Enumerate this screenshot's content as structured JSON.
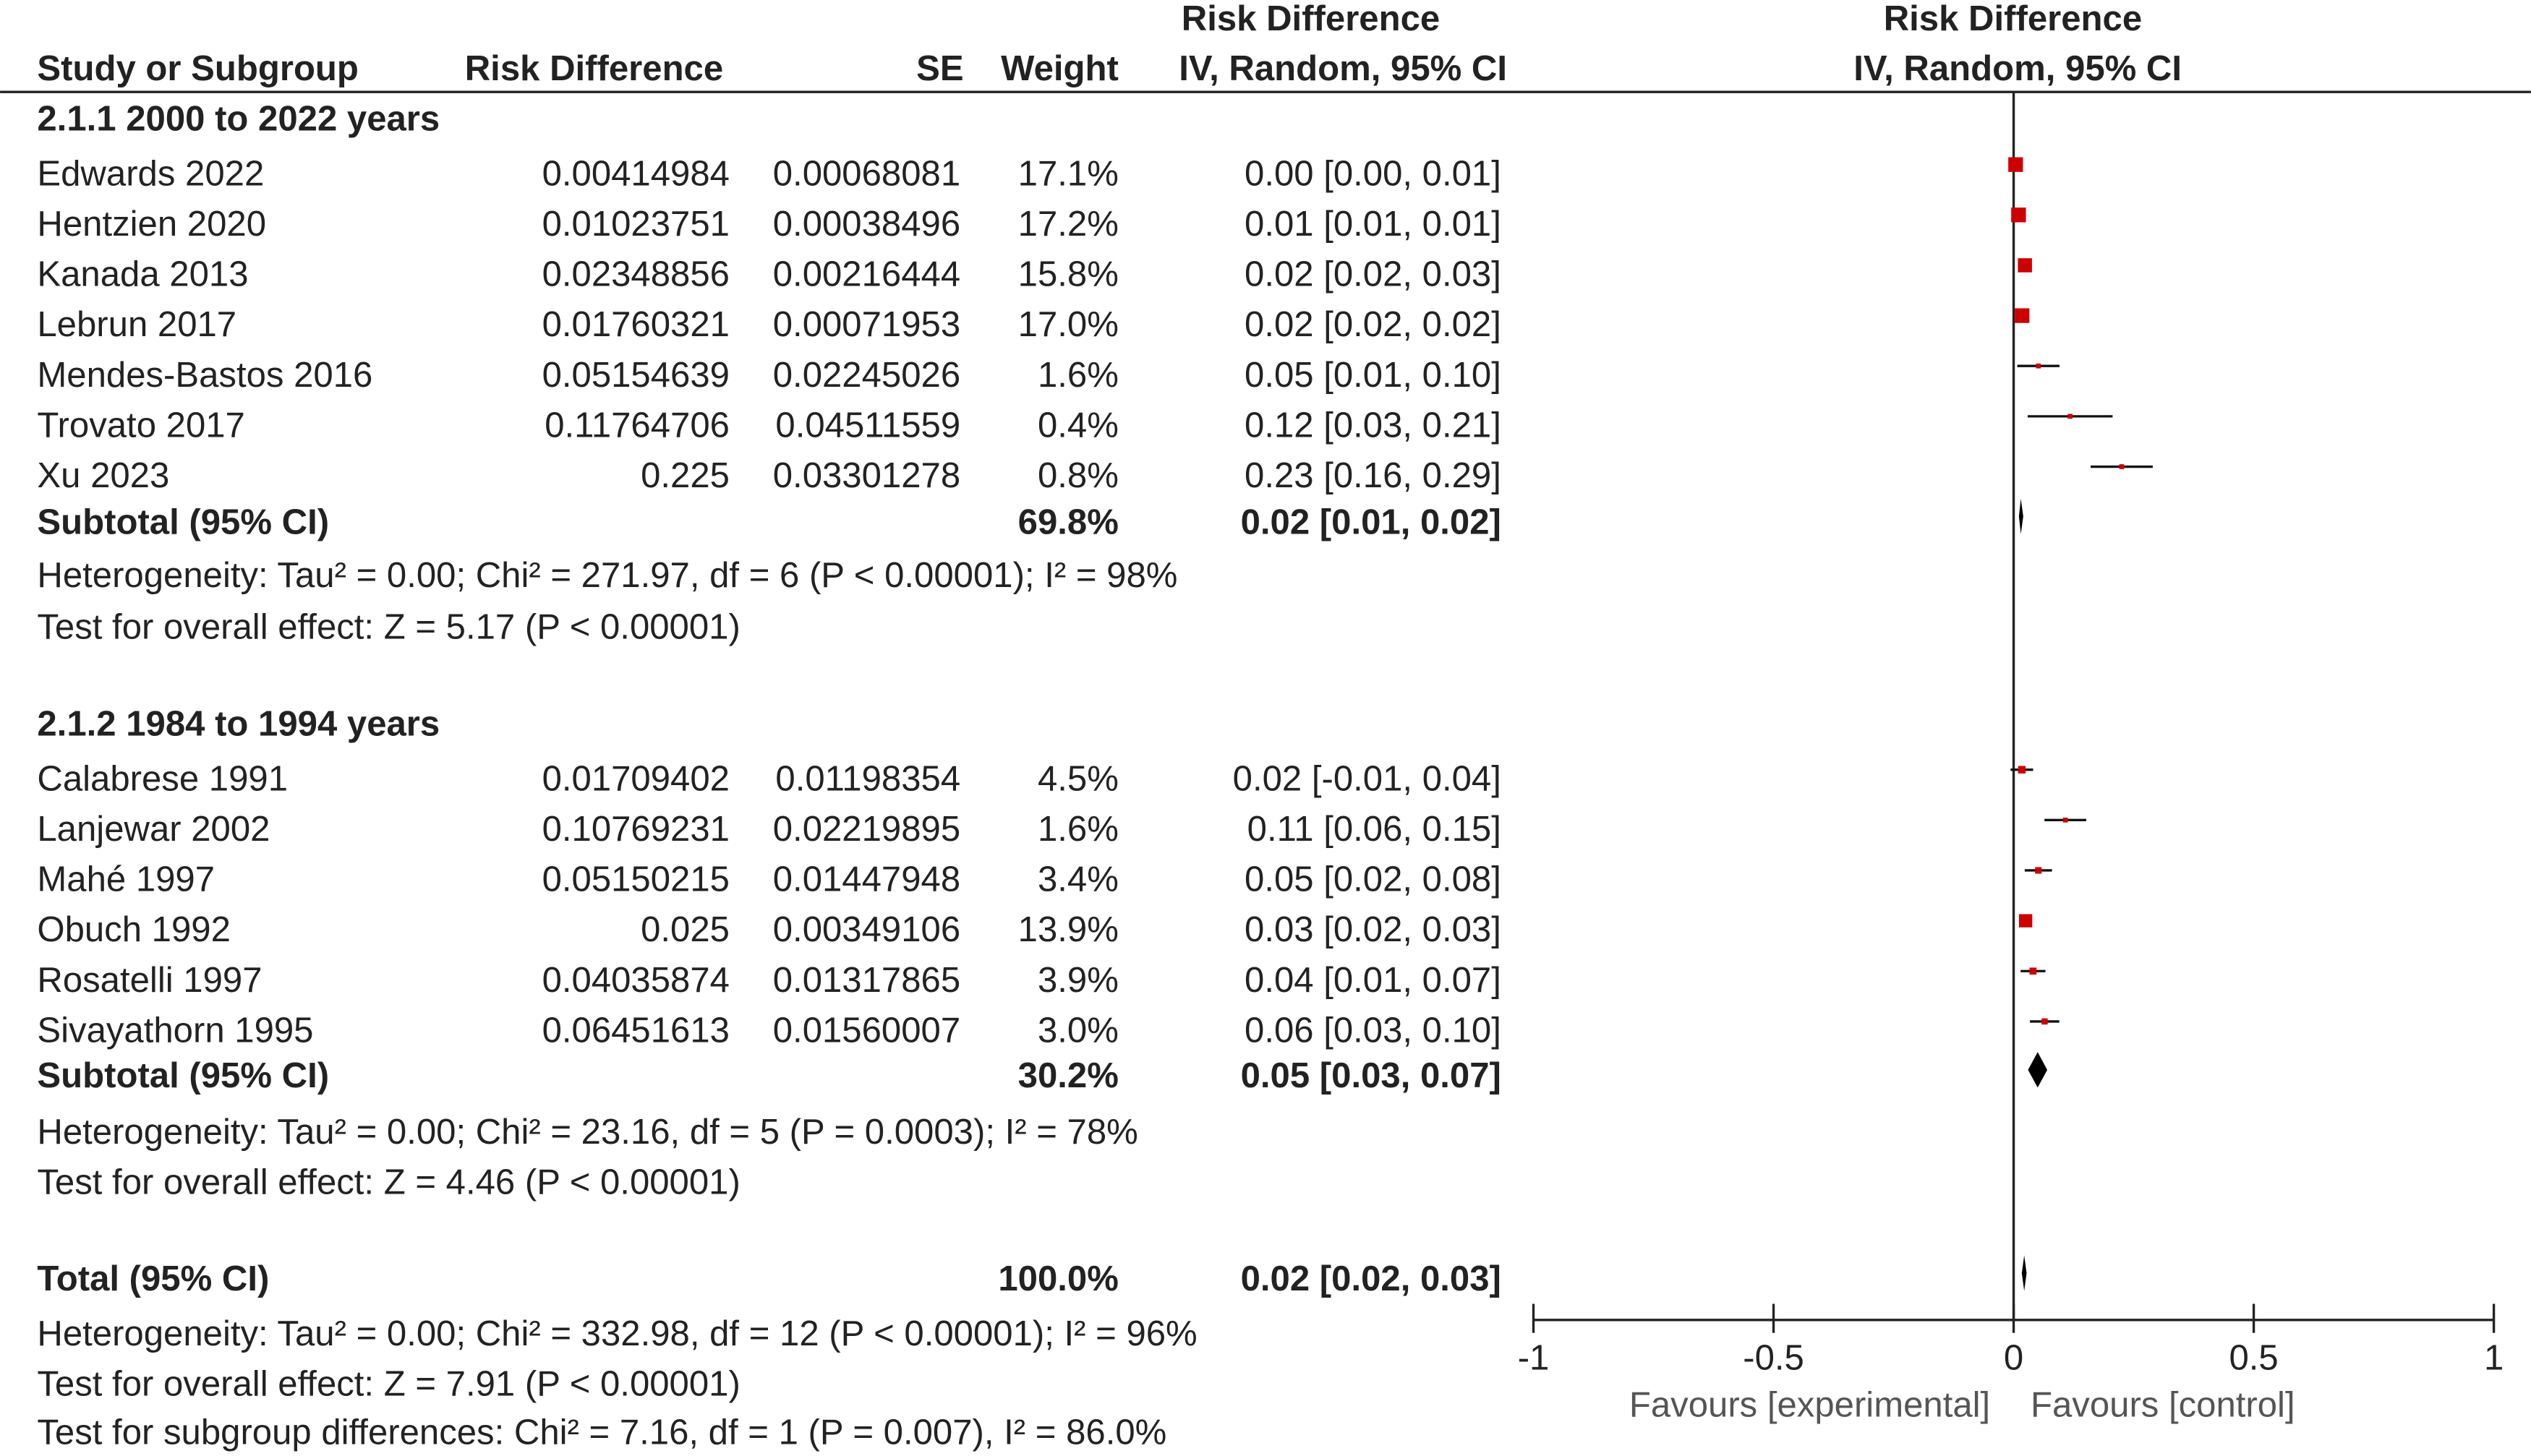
{
  "chart_data": {
    "type": "forest",
    "headers": {
      "top_left": "Risk Difference",
      "top_right": "Risk Difference",
      "study": "Study or Subgroup",
      "rd": "Risk Difference",
      "se": "SE",
      "weight": "Weight",
      "ci": "IV, Random, 95% CI",
      "plot": "IV, Random, 95% CI"
    },
    "groups": [
      {
        "title": "2.1.1 2000 to 2022 years",
        "studies": [
          {
            "name": "Edwards 2022",
            "rd": 0.00414984,
            "se": 0.00068081,
            "weight": {
              "value": 17.1,
              "label": "17.1%"
            },
            "ci_label": "0.00 [0.00, 0.01]",
            "ci": [
              0.0028,
              0.0055
            ]
          },
          {
            "name": "Hentzien 2020",
            "rd": 0.01023751,
            "se": 0.00038496,
            "weight": {
              "value": 17.2,
              "label": "17.2%"
            },
            "ci_label": "0.01 [0.01, 0.01]",
            "ci": [
              0.0095,
              0.011
            ]
          },
          {
            "name": "Kanada 2013",
            "rd": 0.02348856,
            "se": 0.00216444,
            "weight": {
              "value": 15.8,
              "label": "15.8%"
            },
            "ci_label": "0.02 [0.02, 0.03]",
            "ci": [
              0.0192,
              0.0277
            ]
          },
          {
            "name": "Lebrun 2017",
            "rd": 0.01760321,
            "se": 0.00071953,
            "weight": {
              "value": 17.0,
              "label": "17.0%"
            },
            "ci_label": "0.02 [0.02, 0.02]",
            "ci": [
              0.0162,
              0.019
            ]
          },
          {
            "name": "Mendes-Bastos 2016",
            "rd": 0.05154639,
            "se": 0.02245026,
            "weight": {
              "value": 1.6,
              "label": "1.6%"
            },
            "ci_label": "0.05 [0.01, 0.10]",
            "ci": [
              0.0075,
              0.0955
            ]
          },
          {
            "name": "Trovato 2017",
            "rd": 0.11764706,
            "se": 0.04511559,
            "weight": {
              "value": 0.4,
              "label": "0.4%"
            },
            "ci_label": "0.12 [0.03, 0.21]",
            "ci": [
              0.0292,
              0.2061
            ]
          },
          {
            "name": "Xu 2023",
            "rd": 0.225,
            "se": 0.03301278,
            "weight": {
              "value": 0.8,
              "label": "0.8%"
            },
            "ci_label": "0.23 [0.16, 0.29]",
            "ci": [
              0.1603,
              0.2897
            ]
          }
        ],
        "subtotal": {
          "name": "Subtotal (95% CI)",
          "weight": {
            "value": 69.8,
            "label": "69.8%"
          },
          "estimate": 0.015,
          "ci": [
            0.011,
            0.02
          ],
          "ci_label": "0.02 [0.01, 0.02]"
        },
        "heterogeneity": "Heterogeneity: Tau² = 0.00; Chi² = 271.97, df = 6 (P < 0.00001); I² = 98%",
        "overall": "Test for overall effect: Z = 5.17 (P < 0.00001)"
      },
      {
        "title": "2.1.2 1984 to 1994 years",
        "studies": [
          {
            "name": "Calabrese 1991",
            "rd": 0.01709402,
            "se": 0.01198354,
            "weight": {
              "value": 4.5,
              "label": "4.5%"
            },
            "ci_label": "0.02 [-0.01, 0.04]",
            "ci": [
              -0.0064,
              0.0406
            ]
          },
          {
            "name": "Lanjewar 2002",
            "rd": 0.10769231,
            "se": 0.02219895,
            "weight": {
              "value": 1.6,
              "label": "1.6%"
            },
            "ci_label": "0.11 [0.06, 0.15]",
            "ci": [
              0.0642,
              0.1512
            ]
          },
          {
            "name": "Mahé 1997",
            "rd": 0.05150215,
            "se": 0.01447948,
            "weight": {
              "value": 3.4,
              "label": "3.4%"
            },
            "ci_label": "0.05 [0.02, 0.08]",
            "ci": [
              0.0231,
              0.0799
            ]
          },
          {
            "name": "Obuch 1992",
            "rd": 0.025,
            "se": 0.00349106,
            "weight": {
              "value": 13.9,
              "label": "13.9%"
            },
            "ci_label": "0.03 [0.02, 0.03]",
            "ci": [
              0.0182,
              0.0318
            ]
          },
          {
            "name": "Rosatelli 1997",
            "rd": 0.04035874,
            "se": 0.01317865,
            "weight": {
              "value": 3.9,
              "label": "3.9%"
            },
            "ci_label": "0.04 [0.01, 0.07]",
            "ci": [
              0.0145,
              0.0662
            ]
          },
          {
            "name": "Sivayathorn 1995",
            "rd": 0.06451613,
            "se": 0.01560007,
            "weight": {
              "value": 3.0,
              "label": "3.0%"
            },
            "ci_label": "0.06 [0.03, 0.10]",
            "ci": [
              0.0339,
              0.0951
            ]
          }
        ],
        "subtotal": {
          "name": "Subtotal (95% CI)",
          "weight": {
            "value": 30.2,
            "label": "30.2%"
          },
          "estimate": 0.05,
          "ci": [
            0.03,
            0.07
          ],
          "ci_label": "0.05 [0.03, 0.07]"
        },
        "heterogeneity": "Heterogeneity: Tau² = 0.00; Chi² = 23.16, df = 5 (P = 0.0003); I² = 78%",
        "overall": "Test for overall effect: Z = 4.46 (P < 0.00001)"
      }
    ],
    "total": {
      "name": "Total (95% CI)",
      "weight": {
        "value": 100.0,
        "label": "100.0%"
      },
      "estimate": 0.022,
      "ci": [
        0.017,
        0.027
      ],
      "ci_label": "0.02 [0.02, 0.03]",
      "heterogeneity": "Heterogeneity: Tau² = 0.00; Chi² = 332.98, df = 12 (P < 0.00001); I² = 96%",
      "overall": "Test for overall effect: Z = 7.91 (P < 0.00001)",
      "subgroup_test": "Test for subgroup differences: Chi² = 7.16, df = 1 (P = 0.007), I² = 86.0%"
    },
    "xlim": [
      -1,
      1
    ],
    "xticks": [
      -1,
      -0.5,
      0,
      0.5,
      1
    ],
    "xlabel_left": "Favours [experimental]",
    "xlabel_right": "Favours [control]",
    "marker_color": "#cc0000",
    "diamond_color": "#000000"
  }
}
